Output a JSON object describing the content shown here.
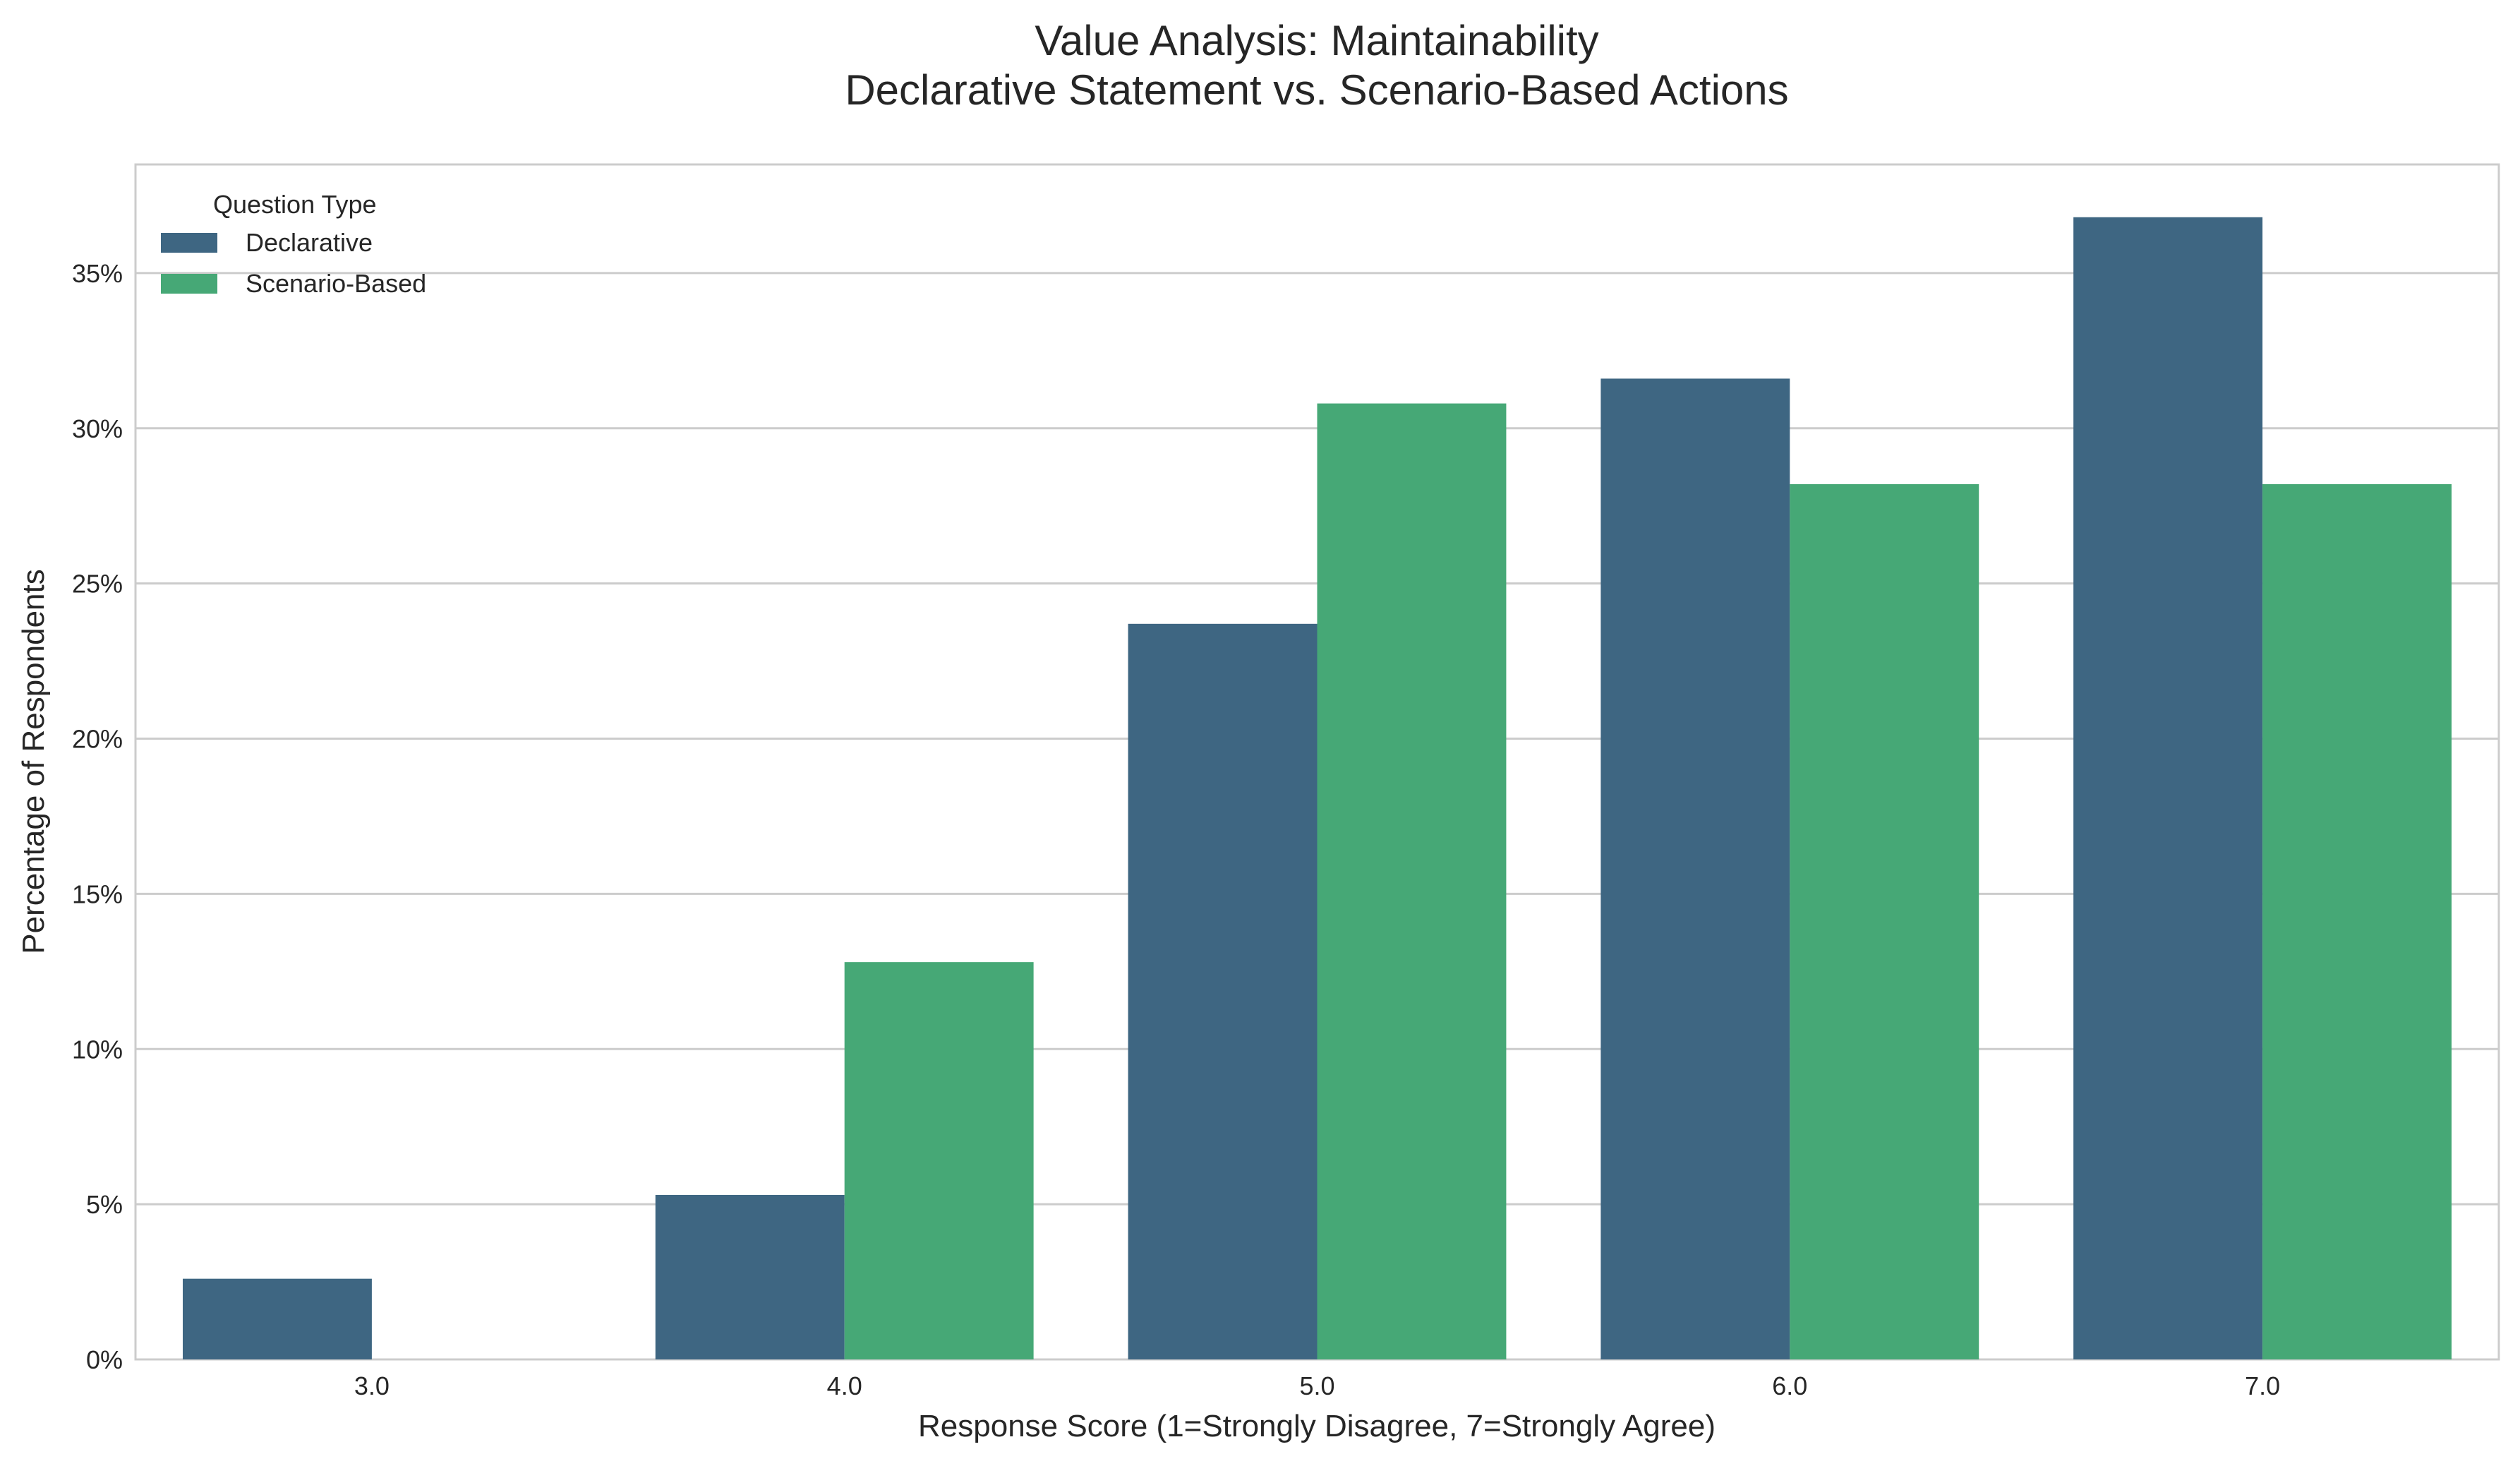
{
  "chart_data": {
    "type": "bar",
    "title": "Value Analysis: Maintainability",
    "subtitle": "Declarative Statement vs. Scenario-Based Actions",
    "xlabel": "Response Score (1=Strongly Disagree, 7=Strongly Agree)",
    "ylabel": "Percentage of Respondents",
    "categories": [
      "3.0",
      "4.0",
      "5.0",
      "6.0",
      "7.0"
    ],
    "series": [
      {
        "name": "Declarative",
        "color": "#3e6682",
        "values": [
          2.6,
          5.3,
          23.7,
          31.6,
          36.8
        ]
      },
      {
        "name": "Scenario-Based",
        "color": "#46a876",
        "values": [
          0,
          12.8,
          30.8,
          28.2,
          28.2
        ]
      }
    ],
    "ylim": [
      0,
      38.5
    ],
    "yticks": [
      0,
      5,
      10,
      15,
      20,
      25,
      30,
      35
    ],
    "ytick_labels": [
      "0%",
      "5%",
      "10%",
      "15%",
      "20%",
      "25%",
      "30%",
      "35%"
    ],
    "grid": "horizontal",
    "legend": {
      "title": "Question Type",
      "placement": "top-left"
    }
  }
}
